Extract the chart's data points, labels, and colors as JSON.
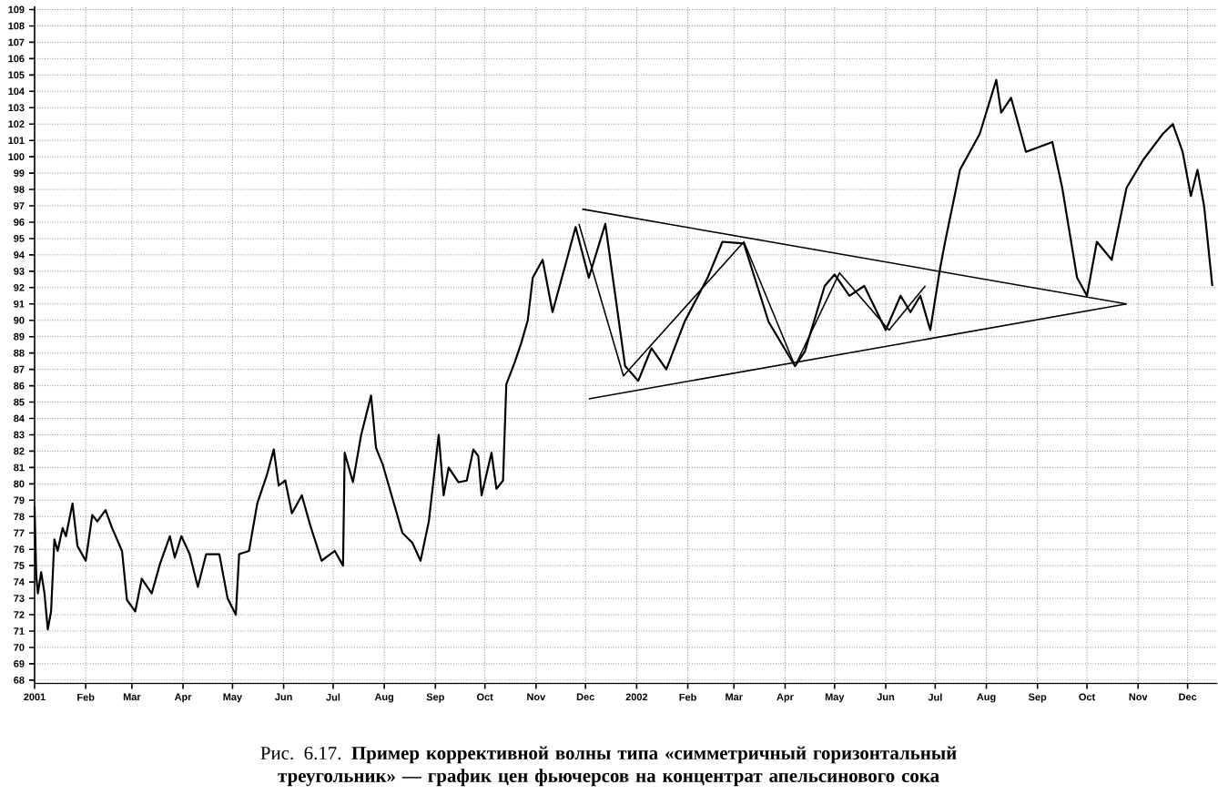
{
  "chart_data": {
    "type": "line",
    "annotations": [
      "Рис. 6.17. **Пример коррективной волны типа «симметричный горизонтальный треугольник» — график цен фьючерсов на концентрат апельсинового сока**"
    ],
    "xlim": [
      "2001-01-01",
      "2002-12-19"
    ],
    "ylim": [
      67.8,
      109.2
    ],
    "grid": true,
    "xticks": [
      "2001",
      {
        "value": "2001-02",
        "label": "Feb"
      },
      {
        "value": "2001-03",
        "label": "Mar"
      },
      {
        "value": "2001-04",
        "label": "Apr"
      },
      {
        "value": "2001-05",
        "label": "May"
      },
      {
        "value": "2001-06",
        "label": "Jun"
      },
      {
        "value": "2001-07",
        "label": "Jul"
      },
      {
        "value": "2001-08",
        "label": "Aug"
      },
      {
        "value": "2001-09",
        "label": "Sep"
      },
      {
        "value": "2001-10",
        "label": "Oct"
      },
      {
        "value": "2001-11",
        "label": "Nov"
      },
      {
        "value": "2001-12",
        "label": "Dec"
      },
      "2002",
      {
        "value": "2002-02",
        "label": "Feb"
      },
      {
        "value": "2002-03",
        "label": "Mar"
      },
      {
        "value": "2002-04",
        "label": "Apr"
      },
      {
        "value": "2002-05",
        "label": "May"
      },
      {
        "value": "2002-06",
        "label": "Jun"
      },
      {
        "value": "2002-07",
        "label": "Jul"
      },
      {
        "value": "2002-08",
        "label": "Aug"
      },
      {
        "value": "2002-09",
        "label": "Sep"
      },
      {
        "value": "2002-10",
        "label": "Oct"
      },
      {
        "value": "2002-11",
        "label": "Nov"
      },
      {
        "value": "2002-12",
        "label": "Dec"
      }
    ],
    "yticks": [
      68,
      69,
      70,
      71,
      72,
      73,
      74,
      75,
      76,
      77,
      78,
      79,
      80,
      81,
      82,
      83,
      84,
      85,
      86,
      87,
      88,
      89,
      90,
      91,
      92,
      93,
      94,
      95,
      96,
      97,
      98,
      99,
      100,
      101,
      102,
      103,
      104,
      105,
      106,
      107,
      108,
      109
    ],
    "series": [
      {
        "color": "#000000",
        "x": [
          "2001-01-01",
          "2001-01-02",
          "2001-01-03",
          "2001-01-05",
          "2001-01-07",
          "2001-01-09",
          "2001-01-11",
          "2001-01-13",
          "2001-01-15",
          "2001-01-18",
          "2001-01-20",
          "2001-01-24",
          "2001-01-27",
          "2001-02-01",
          "2001-02-05",
          "2001-02-08",
          "2001-02-13",
          "2001-02-17",
          "2001-02-23",
          "2001-02-26",
          "2001-03-03",
          "2001-03-07",
          "2001-03-13",
          "2001-03-18",
          "2001-03-24",
          "2001-03-27",
          "2001-03-31",
          "2001-04-05",
          "2001-04-10",
          "2001-04-15",
          "2001-04-23",
          "2001-04-28",
          "2001-05-03",
          "2001-05-05",
          "2001-05-11",
          "2001-05-16",
          "2001-05-22",
          "2001-05-26",
          "2001-05-29",
          "2001-06-02",
          "2001-06-06",
          "2001-06-12",
          "2001-06-17",
          "2001-06-24",
          "2001-07-02",
          "2001-07-07",
          "2001-07-08",
          "2001-07-13",
          "2001-07-18",
          "2001-07-24",
          "2001-07-27",
          "2001-07-31",
          "2001-08-06",
          "2001-08-12",
          "2001-08-18",
          "2001-08-23",
          "2001-08-28",
          "2001-09-03",
          "2001-09-06",
          "2001-09-09",
          "2001-09-15",
          "2001-09-20",
          "2001-09-24",
          "2001-09-27",
          "2001-09-29",
          "2001-10-05",
          "2001-10-08",
          "2001-10-12",
          "2001-10-14",
          "2001-10-19",
          "2001-10-23",
          "2001-10-27",
          "2001-10-30",
          "2001-11-05",
          "2001-11-11",
          "2001-11-25",
          "2001-12-03",
          "2001-12-13",
          "2001-12-25",
          "2002-01-02",
          "2002-01-10",
          "2002-01-19",
          "2002-01-30",
          "2002-02-13",
          "2002-02-22",
          "2002-03-07",
          "2002-03-22",
          "2002-04-07",
          "2002-04-13",
          "2002-04-25",
          "2002-05-01",
          "2002-05-10",
          "2002-05-19",
          "2002-06-01",
          "2002-06-10",
          "2002-06-16",
          "2002-06-22",
          "2002-06-28",
          "2002-07-04",
          "2002-07-07",
          "2002-07-16",
          "2002-07-28",
          "2002-08-07",
          "2002-08-10",
          "2002-08-16",
          "2002-08-25",
          "2002-09-10",
          "2002-09-16",
          "2002-09-25",
          "2002-10-01",
          "2002-10-07",
          "2002-10-16",
          "2002-10-25",
          "2002-11-04",
          "2002-11-16",
          "2002-11-22",
          "2002-11-28",
          "2002-12-03",
          "2002-12-07",
          "2002-12-11",
          "2002-12-16"
        ],
        "values": [
          78.6,
          74.4,
          73.3,
          74.6,
          73.3,
          71.1,
          72.2,
          76.6,
          75.9,
          77.3,
          76.8,
          78.8,
          76.2,
          75.3,
          78.1,
          77.7,
          78.4,
          77.3,
          75.9,
          72.9,
          72.2,
          74.2,
          73.3,
          75.1,
          76.8,
          75.5,
          76.8,
          75.7,
          73.7,
          75.7,
          75.7,
          73.0,
          72.0,
          75.7,
          75.9,
          78.8,
          80.6,
          82.1,
          79.9,
          80.2,
          78.2,
          79.3,
          77.5,
          75.3,
          75.9,
          75.0,
          81.9,
          80.1,
          83.0,
          85.4,
          82.2,
          81.2,
          79.1,
          77.0,
          76.4,
          75.3,
          77.7,
          83.0,
          79.3,
          81.0,
          80.1,
          80.2,
          82.1,
          81.7,
          79.3,
          81.9,
          79.7,
          80.2,
          86.1,
          87.4,
          88.6,
          90.0,
          92.6,
          93.7,
          90.5,
          95.7,
          92.6,
          95.9,
          87.2,
          86.3,
          88.3,
          87.0,
          89.9,
          92.6,
          94.8,
          94.7,
          89.9,
          87.2,
          88.1,
          92.1,
          92.8,
          91.5,
          92.1,
          89.4,
          91.5,
          90.5,
          91.5,
          89.4,
          93.2,
          94.8,
          99.2,
          101.4,
          104.7,
          102.7,
          103.6,
          100.3,
          100.9,
          98.1,
          92.6,
          91.5,
          94.8,
          93.7,
          98.1,
          99.8,
          101.4,
          102.0,
          100.3,
          97.6,
          99.2,
          97.0,
          92.1
        ]
      },
      {
        "color": "#000000",
        "x": [
          "2001-11-29",
          "2002-10-25"
        ],
        "values": [
          96.8,
          91.0
        ]
      },
      {
        "color": "#000000",
        "x": [
          "2001-12-03",
          "2002-10-25"
        ],
        "values": [
          85.2,
          91.0
        ]
      },
      {
        "color": "#000000",
        "x": [
          "2001-11-27",
          "2001-12-24",
          "2002-03-07",
          "2002-04-07",
          "2002-05-04",
          "2002-06-03",
          "2002-06-25"
        ],
        "values": [
          95.9,
          86.6,
          94.8,
          87.2,
          92.9,
          89.4,
          92.1
        ]
      }
    ]
  }
}
